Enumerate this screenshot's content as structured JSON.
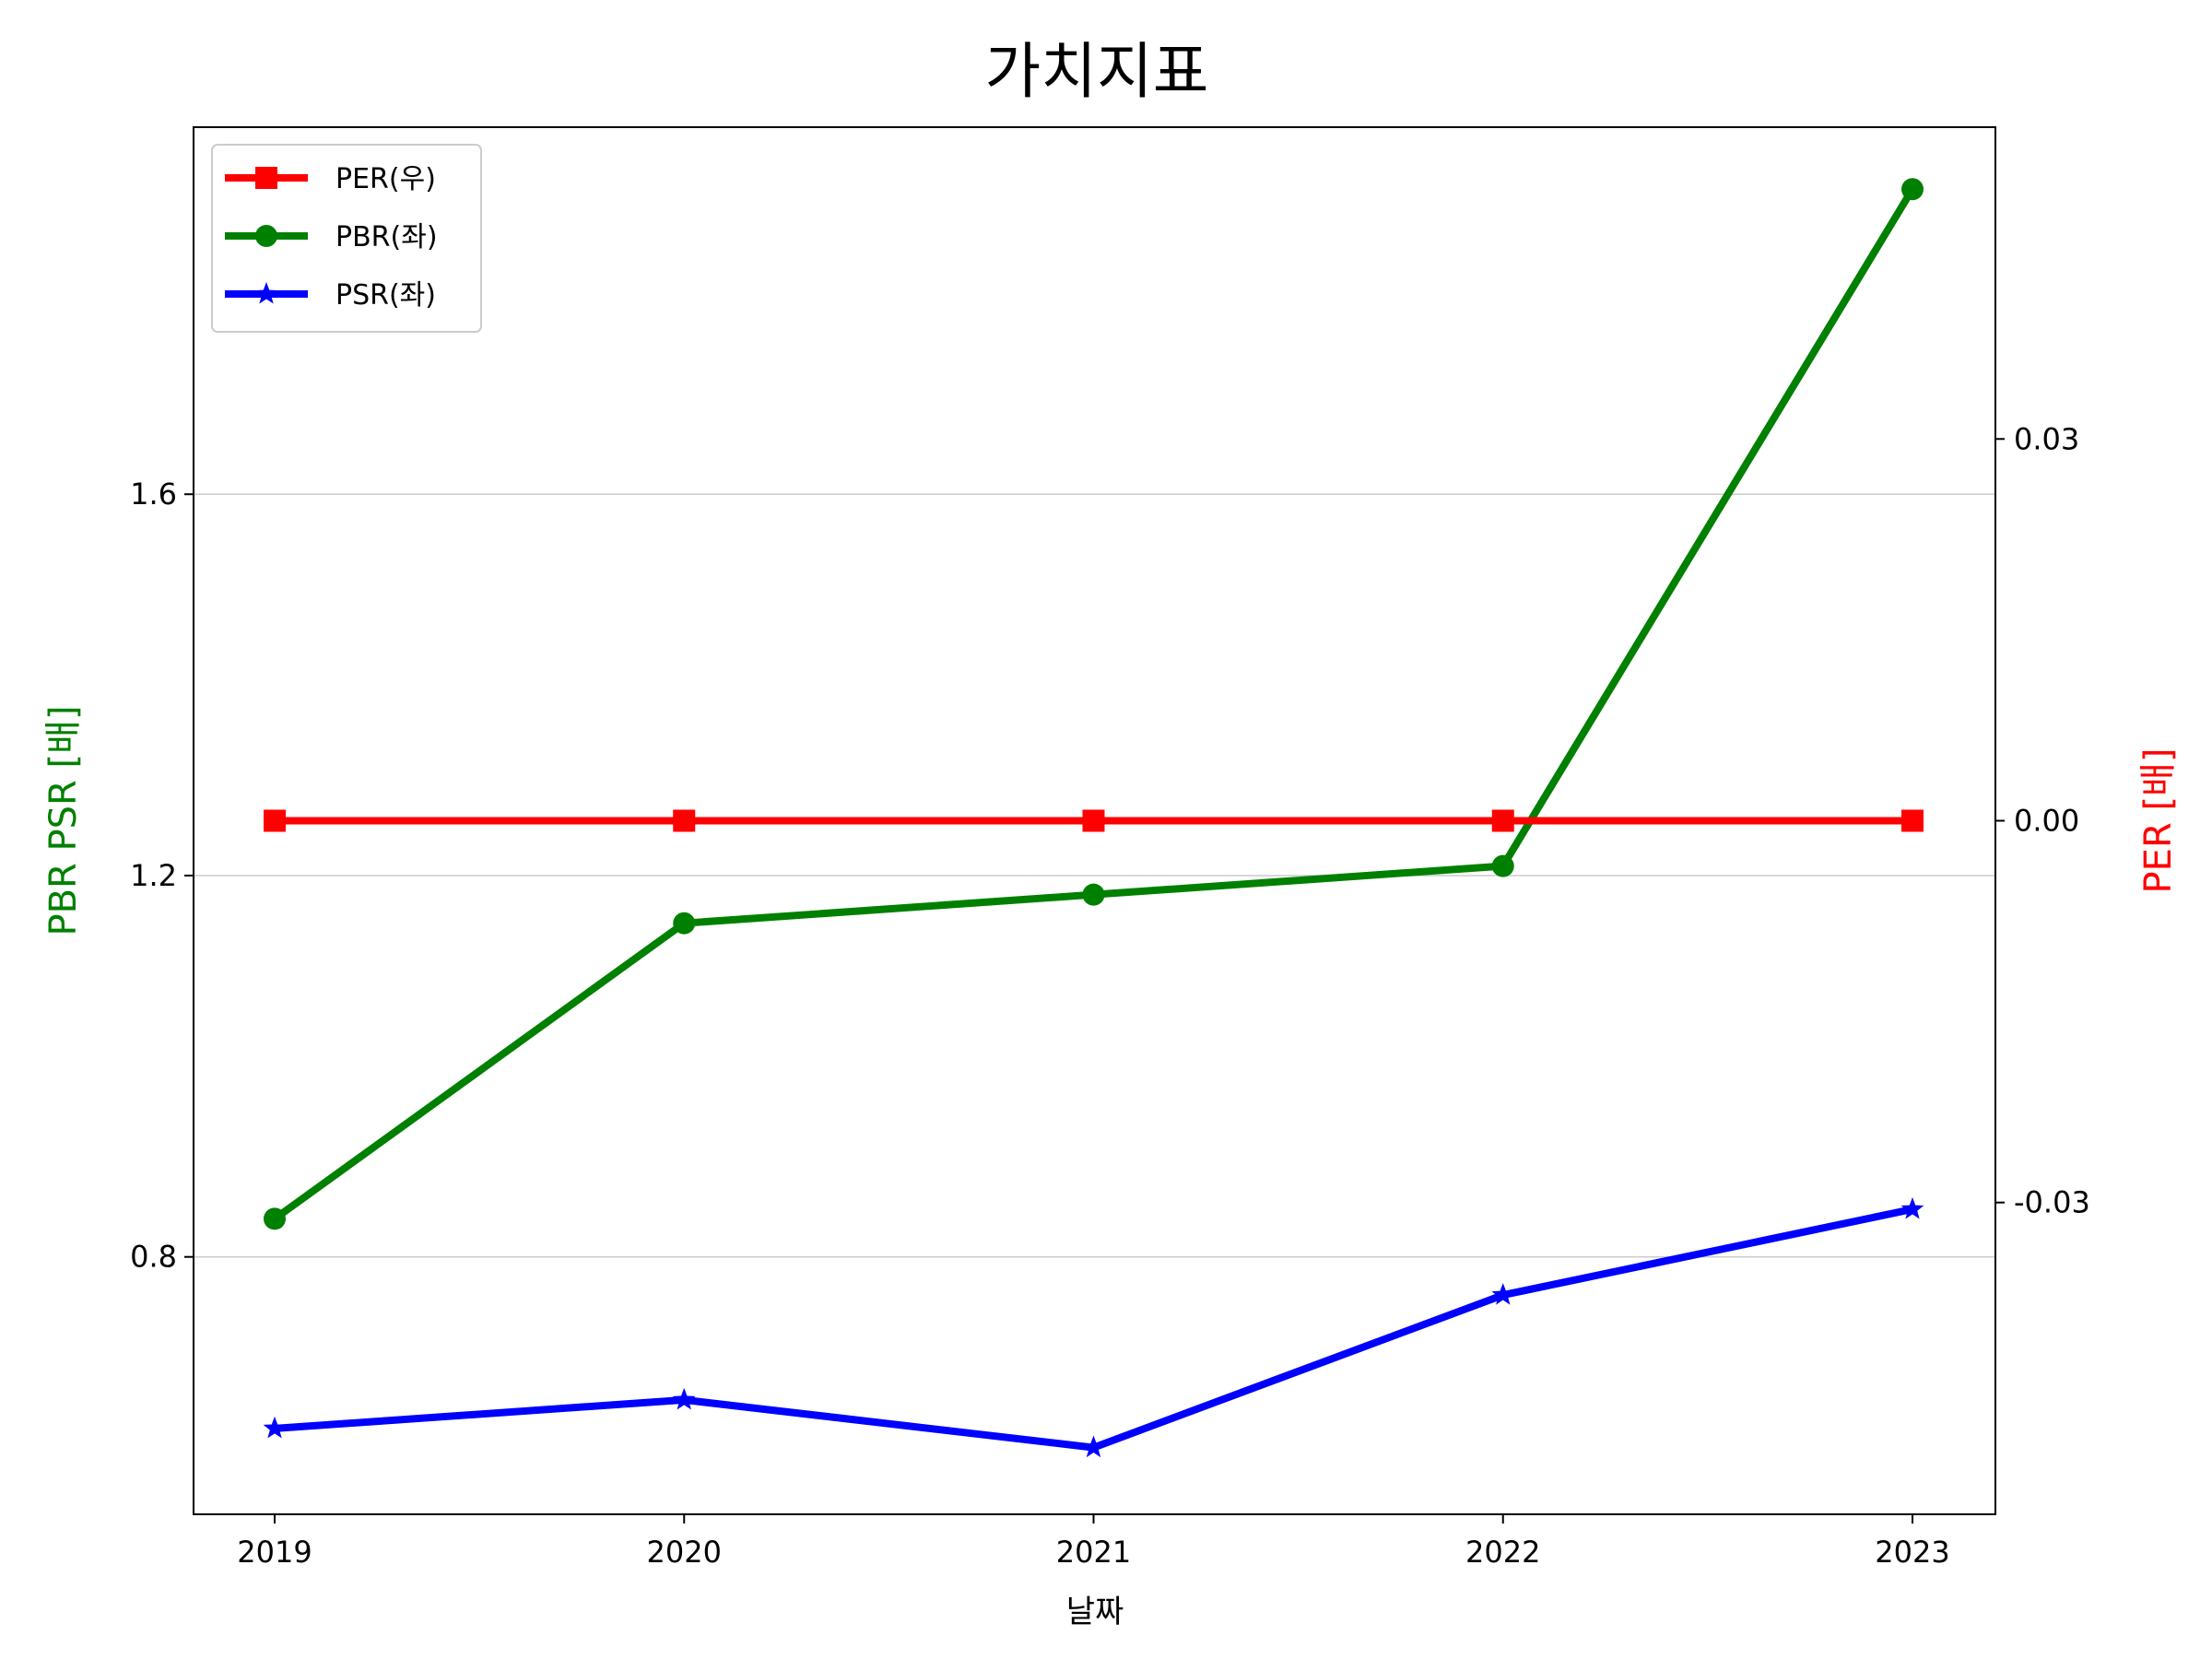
{
  "chart_data": {
    "type": "line",
    "title": "가치지표",
    "xlabel": "날짜",
    "ylabel_left": "PBR PSR [배]",
    "ylabel_right": "PER [배]",
    "categories": [
      "2019",
      "2020",
      "2021",
      "2022",
      "2023"
    ],
    "left_axis": {
      "ylim": [
        0.53,
        1.985
      ],
      "ticks": [
        0.8,
        1.2,
        1.6
      ],
      "tick_labels": [
        "0.8",
        "1.2",
        "1.6"
      ],
      "color": "#008000"
    },
    "right_axis": {
      "ylim": [
        -0.0545,
        0.0545
      ],
      "ticks": [
        -0.03,
        0.0,
        0.03
      ],
      "tick_labels": [
        "-0.03",
        "0.00",
        "0.03"
      ],
      "color": "#ff0000"
    },
    "grid": "horizontal (left axis)",
    "legend_position": "upper-left",
    "series": [
      {
        "name": "PER(우)",
        "axis": "right",
        "color": "#ff0000",
        "marker": "square",
        "values": [
          0,
          0,
          0,
          0,
          0
        ]
      },
      {
        "name": "PBR(좌)",
        "axis": "left",
        "color": "#008000",
        "marker": "circle",
        "values": [
          0.84,
          1.15,
          1.18,
          1.21,
          1.92
        ]
      },
      {
        "name": "PSR(좌)",
        "axis": "left",
        "color": "#0000ff",
        "marker": "star",
        "values": [
          0.62,
          0.65,
          0.6,
          0.76,
          0.85
        ]
      }
    ]
  }
}
